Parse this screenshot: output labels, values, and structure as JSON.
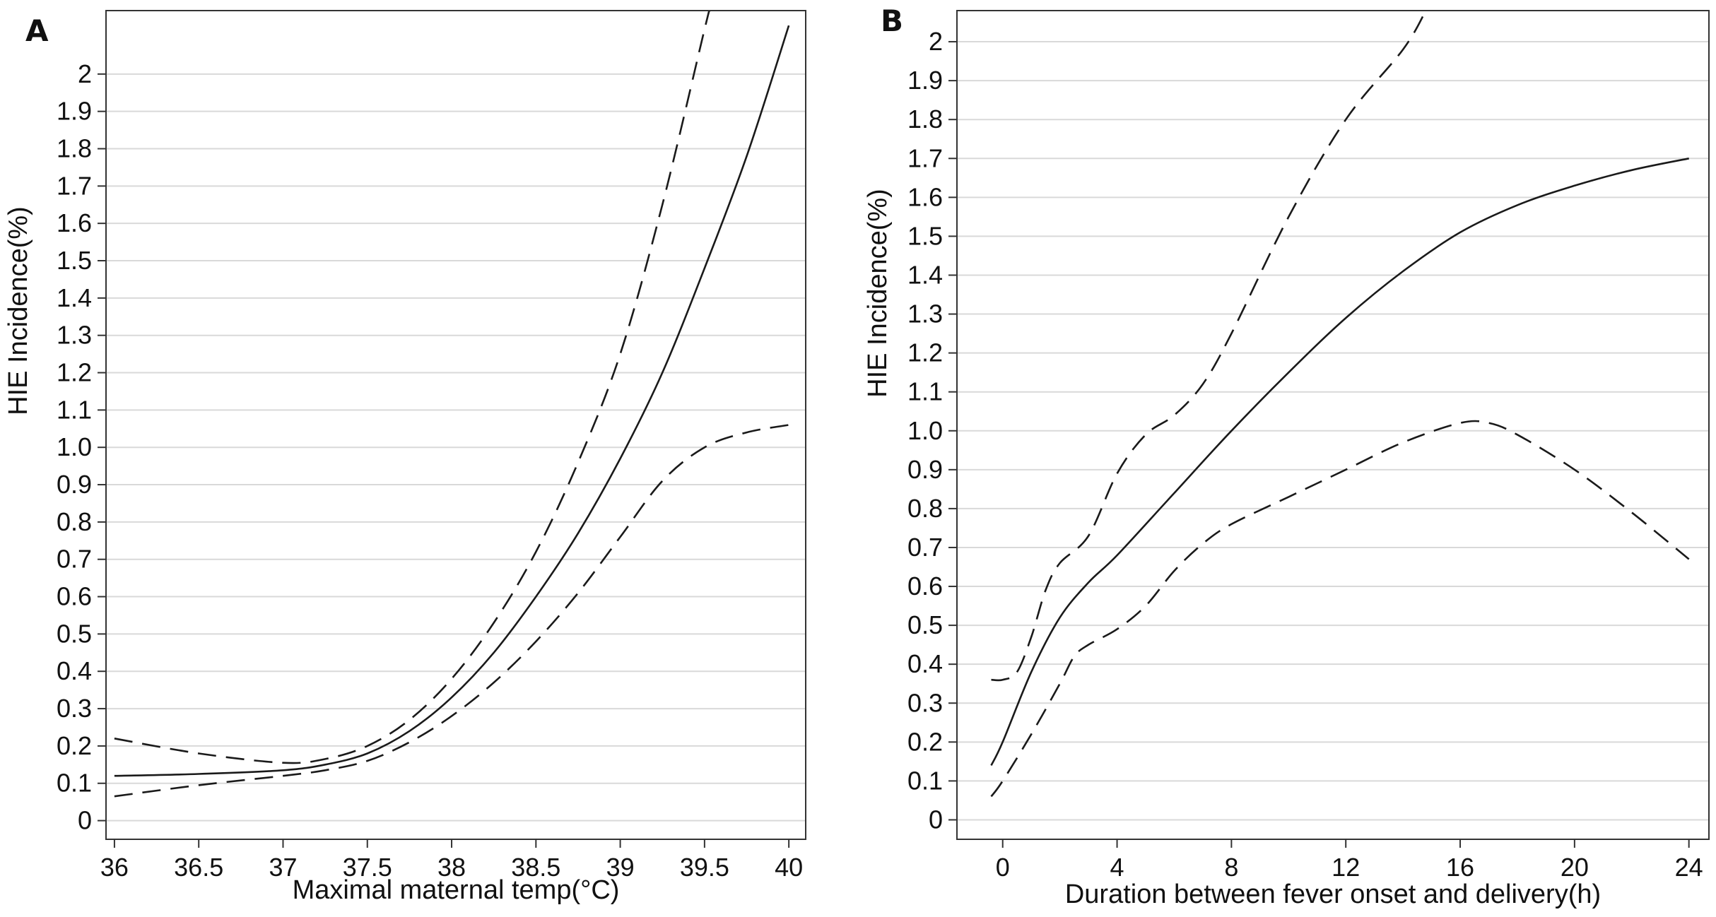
{
  "chart_data": [
    {
      "type": "line",
      "panel_label": "A",
      "xlabel": "Maximal maternal temp(°C)",
      "ylabel": "HIE Incidence(%)",
      "xlim": [
        35.95,
        40.1
      ],
      "ylim": [
        -0.05,
        2.17
      ],
      "x_ticks": [
        36,
        36.5,
        37,
        37.5,
        38,
        38.5,
        39,
        39.5,
        40
      ],
      "x_tick_labels": [
        "36",
        "36.5",
        "37",
        "37.5",
        "38",
        "38.5",
        "39",
        "39.5",
        "40"
      ],
      "y_ticks": [
        0,
        0.1,
        0.2,
        0.3,
        0.4,
        0.5,
        0.6,
        0.7,
        0.8,
        0.9,
        1.0,
        1.1,
        1.2,
        1.3,
        1.4,
        1.5,
        1.6,
        1.7,
        1.8,
        1.9,
        2.0
      ],
      "y_tick_labels": [
        "0",
        "0.1",
        "0.2",
        "0.3",
        "0.4",
        "0.5",
        "0.6",
        "0.7",
        "0.8",
        "0.9",
        "1.0",
        "1.1",
        "1.2",
        "1.3",
        "1.4",
        "1.5",
        "1.6",
        "1.7",
        "1.8",
        "1.9",
        "2"
      ],
      "grid": true,
      "series": [
        {
          "style": "solid",
          "x": [
            36,
            36.5,
            37,
            37.25,
            37.5,
            37.75,
            38,
            38.25,
            38.5,
            38.75,
            39,
            39.25,
            39.5,
            39.75,
            40
          ],
          "y": [
            0.12,
            0.125,
            0.135,
            0.15,
            0.18,
            0.24,
            0.33,
            0.45,
            0.6,
            0.77,
            0.97,
            1.2,
            1.48,
            1.78,
            2.13
          ]
        },
        {
          "style": "dashed",
          "x": [
            36,
            36.5,
            37,
            37.25,
            37.5,
            37.75,
            38,
            38.25,
            38.5,
            38.75,
            39,
            39.25,
            39.5,
            39.53
          ],
          "y": [
            0.22,
            0.18,
            0.155,
            0.165,
            0.2,
            0.27,
            0.38,
            0.53,
            0.72,
            0.96,
            1.25,
            1.65,
            2.12,
            2.17
          ]
        },
        {
          "style": "dashed",
          "x": [
            36,
            36.5,
            37,
            37.25,
            37.5,
            37.75,
            38,
            38.25,
            38.5,
            38.75,
            39,
            39.25,
            39.5,
            39.75,
            40
          ],
          "y": [
            0.065,
            0.095,
            0.12,
            0.135,
            0.16,
            0.21,
            0.28,
            0.37,
            0.48,
            0.61,
            0.76,
            0.91,
            1.0,
            1.04,
            1.06
          ]
        }
      ]
    },
    {
      "type": "line",
      "panel_label": "B",
      "xlabel": "Duration between fever onset and delivery(h)",
      "ylabel": "HIE Incidence(%)",
      "xlim": [
        -1.6,
        24.7
      ],
      "ylim": [
        -0.05,
        2.08
      ],
      "x_ticks": [
        0,
        4,
        8,
        12,
        16,
        20,
        24
      ],
      "x_tick_labels": [
        "0",
        "4",
        "8",
        "12",
        "16",
        "20",
        "24"
      ],
      "y_ticks": [
        0,
        0.1,
        0.2,
        0.3,
        0.4,
        0.5,
        0.6,
        0.7,
        0.8,
        0.9,
        1.0,
        1.1,
        1.2,
        1.3,
        1.4,
        1.5,
        1.6,
        1.7,
        1.8,
        1.9,
        2.0
      ],
      "y_tick_labels": [
        "0",
        "0.1",
        "0.2",
        "0.3",
        "0.4",
        "0.5",
        "0.6",
        "0.7",
        "0.8",
        "0.9",
        "1.0",
        "1.1",
        "1.2",
        "1.3",
        "1.4",
        "1.5",
        "1.6",
        "1.7",
        "1.8",
        "1.9",
        "2"
      ],
      "grid": true,
      "series": [
        {
          "style": "solid",
          "x": [
            -0.4,
            0,
            1,
            2,
            3,
            4,
            6,
            8,
            10,
            12,
            14,
            16,
            18,
            20,
            22,
            24
          ],
          "y": [
            0.14,
            0.2,
            0.38,
            0.52,
            0.61,
            0.68,
            0.84,
            1.0,
            1.15,
            1.29,
            1.41,
            1.51,
            1.58,
            1.63,
            1.67,
            1.7
          ]
        },
        {
          "style": "dashed",
          "x": [
            -0.4,
            0,
            0.5,
            1,
            1.5,
            2,
            3,
            4,
            5,
            6,
            7,
            8,
            10,
            12,
            14,
            14.8
          ],
          "y": [
            0.36,
            0.36,
            0.38,
            0.47,
            0.59,
            0.66,
            0.73,
            0.89,
            0.99,
            1.04,
            1.12,
            1.25,
            1.55,
            1.8,
            1.98,
            2.08
          ]
        },
        {
          "style": "dashed",
          "x": [
            -0.4,
            0,
            1,
            2,
            2.5,
            3,
            4,
            5,
            6,
            7,
            8,
            10,
            12,
            14,
            16,
            17,
            18,
            20,
            22,
            24
          ],
          "y": [
            0.06,
            0.1,
            0.22,
            0.35,
            0.42,
            0.45,
            0.49,
            0.55,
            0.64,
            0.71,
            0.76,
            0.83,
            0.9,
            0.97,
            1.02,
            1.02,
            0.99,
            0.9,
            0.79,
            0.67
          ]
        }
      ]
    }
  ]
}
